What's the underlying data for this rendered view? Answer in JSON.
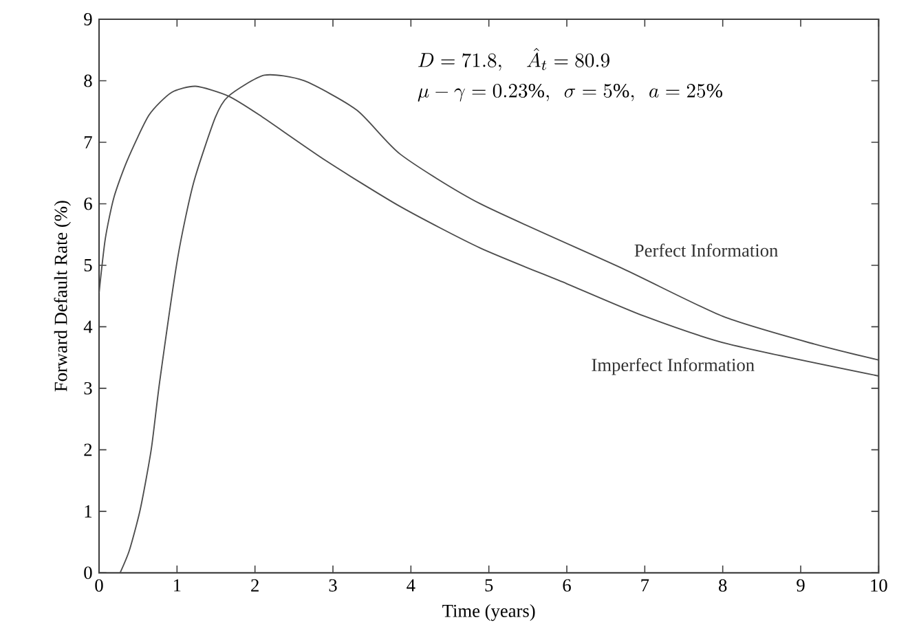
{
  "chart_data": {
    "type": "line",
    "xlabel": "Time (years)",
    "ylabel": "Forward Default Rate (%)",
    "xlim": [
      0,
      10
    ],
    "ylim": [
      0,
      9
    ],
    "xticks": [
      0,
      1,
      2,
      3,
      4,
      5,
      6,
      7,
      8,
      9,
      10
    ],
    "yticks": [
      0,
      1,
      2,
      3,
      4,
      5,
      6,
      7,
      8,
      9
    ],
    "annotations": [
      "D = 71.8,\\quad \\hat{A}_t = 80.9",
      "\\mu - \\gamma = 0.23\\%,\\ \\ \\sigma = 5\\%,\\ \\ a = 25\\%"
    ],
    "legend": false,
    "grid": false,
    "marker": "none",
    "line_style": "solid",
    "series": [
      {
        "name": "Perfect Information",
        "color": "#4d4d4d",
        "x": [
          0.27,
          0.39,
          0.53,
          0.67,
          0.78,
          1.01,
          1.21,
          1.49,
          1.66,
          2.12,
          2.63,
          3.31,
          3.87,
          4.89,
          6.71,
          8.0,
          9.17,
          10
        ],
        "values": [
          0,
          0.37,
          1.04,
          2.01,
          3.13,
          5.13,
          6.33,
          7.4,
          7.75,
          8.09,
          8.0,
          7.52,
          6.8,
          6.0,
          4.95,
          4.17,
          3.72,
          3.46
        ]
      },
      {
        "name": "Imperfect Information",
        "color": "#4d4d4d",
        "x": [
          0,
          0.08,
          0.19,
          0.36,
          0.64,
          0.93,
          1.24,
          1.66,
          2.06,
          2.91,
          3.87,
          4.89,
          6.0,
          7.0,
          8.07,
          10
        ],
        "values": [
          4.55,
          5.43,
          6.1,
          6.7,
          7.44,
          7.81,
          7.91,
          7.75,
          7.44,
          6.7,
          5.95,
          5.28,
          4.7,
          4.17,
          3.72,
          3.2
        ]
      }
    ]
  }
}
